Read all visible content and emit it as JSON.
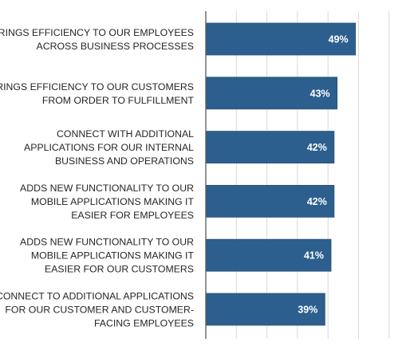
{
  "chart_data": {
    "type": "bar",
    "orientation": "horizontal",
    "categories": [
      [
        "BRINGS EFFICIENCY TO OUR EMPLOYEES",
        "ACROSS BUSINESS PROCESSES"
      ],
      [
        "BRINGS EFFICIENCY TO OUR CUSTOMERS",
        "FROM ORDER TO FULFILLMENT"
      ],
      [
        "CONNECT WITH ADDITIONAL",
        "APPLICATIONS FOR OUR INTERNAL",
        "BUSINESS AND OPERATIONS"
      ],
      [
        "ADDS NEW FUNCTIONALITY TO OUR",
        "MOBILE APPLICATIONS MAKING IT",
        "EASIER FOR EMPLOYEES"
      ],
      [
        "ADDS NEW FUNCTIONALITY TO OUR",
        "MOBILE APPLICATIONS MAKING IT",
        "EASIER FOR OUR CUSTOMERS"
      ],
      [
        "CONNECT TO ADDITIONAL APPLICATIONS",
        "FOR OUR CUSTOMER AND CUSTOMER-",
        "FACING EMPLOYEES"
      ]
    ],
    "values": [
      49,
      43,
      42,
      42,
      41,
      39
    ],
    "value_labels": [
      "49%",
      "43%",
      "42%",
      "42%",
      "41%",
      "39%"
    ],
    "xlim": [
      0,
      60
    ],
    "grid": true,
    "title": "",
    "xlabel": "",
    "ylabel": "",
    "colors": {
      "bar": "#2d5f8e",
      "bar_edge": "#24507a",
      "grid": "#d9d9d9",
      "axis": "#595959",
      "label_text": "#262626",
      "value_text": "#ffffff"
    }
  }
}
